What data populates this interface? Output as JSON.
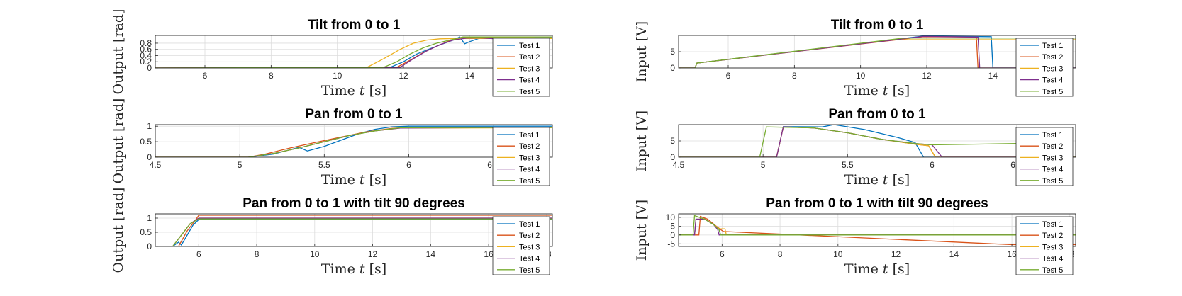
{
  "colors": [
    "#0072BD",
    "#D95319",
    "#EDB120",
    "#7E2F8E",
    "#77AC30"
  ],
  "chart_data": [
    {
      "type": "line",
      "title": "Tilt from 0 to 1",
      "xlabel": "Time t [s]",
      "ylabel": "Output [rad]",
      "xlim": [
        4.5,
        16.5
      ],
      "ylim": [
        0,
        1.05
      ],
      "xticks": [
        6,
        8,
        10,
        12,
        14
      ],
      "yticks": [
        0,
        0.2,
        0.4,
        0.6,
        0.8
      ],
      "ytick_labels": [
        "0",
        "0.2",
        "0.4",
        "0.6",
        "0.8"
      ],
      "grid": true,
      "legend": "bottom-right",
      "series": [
        {
          "name": "Test 1",
          "x": [
            4.5,
            11.6,
            12.0,
            12.4,
            12.8,
            13.2,
            13.5,
            13.7,
            13.85,
            14.0,
            14.3,
            16.5
          ],
          "y": [
            0,
            0.02,
            0.2,
            0.45,
            0.62,
            0.78,
            0.9,
            1.0,
            0.78,
            0.85,
            0.96,
            0.96
          ]
        },
        {
          "name": "Test 2",
          "x": [
            4.5,
            11.8,
            12.2,
            12.6,
            13.0,
            13.4,
            13.8,
            14.2,
            16.5
          ],
          "y": [
            0,
            0.02,
            0.25,
            0.5,
            0.7,
            0.88,
            0.98,
            0.98,
            0.98
          ]
        },
        {
          "name": "Test 3",
          "x": [
            4.5,
            10.9,
            11.4,
            11.9,
            12.3,
            12.7,
            13.1,
            13.5,
            16.5
          ],
          "y": [
            0,
            0.02,
            0.3,
            0.6,
            0.8,
            0.9,
            0.94,
            0.95,
            0.95
          ]
        },
        {
          "name": "Test 4",
          "x": [
            4.5,
            11.9,
            12.3,
            12.7,
            13.1,
            13.5,
            13.9,
            14.3,
            15.5,
            16.0,
            16.5
          ],
          "y": [
            0,
            0.02,
            0.3,
            0.55,
            0.75,
            0.9,
            0.96,
            0.97,
            0.9,
            0.98,
            0.98
          ]
        },
        {
          "name": "Test 5",
          "x": [
            4.5,
            11.4,
            11.8,
            12.2,
            12.6,
            13.0,
            13.4,
            13.8,
            16.5
          ],
          "y": [
            0,
            0.02,
            0.2,
            0.45,
            0.65,
            0.8,
            0.9,
            1.0,
            1.0
          ]
        }
      ]
    },
    {
      "type": "line",
      "title": "Tilt from 0 to 1",
      "xlabel": "Time t [s]",
      "ylabel": "Input [V]",
      "xlim": [
        4.5,
        16.5
      ],
      "ylim": [
        0,
        10
      ],
      "xticks": [
        6,
        8,
        10,
        12,
        14
      ],
      "yticks": [
        0,
        5
      ],
      "ytick_labels": [
        "0",
        "5"
      ],
      "grid": true,
      "legend": "bottom-right",
      "series": [
        {
          "name": "Test 1",
          "x": [
            4.5,
            5.0,
            5.05,
            11.9,
            13.95,
            14.0,
            14.05,
            16.5
          ],
          "y": [
            0,
            0,
            1.5,
            9.8,
            9.6,
            0,
            0,
            0
          ]
        },
        {
          "name": "Test 2",
          "x": [
            4.5,
            5.0,
            5.05,
            11.9,
            13.5,
            13.55,
            16.5
          ],
          "y": [
            0,
            0,
            1.5,
            9.6,
            9.5,
            0,
            0
          ]
        },
        {
          "name": "Test 3",
          "x": [
            4.5,
            5.0,
            5.05,
            11.0,
            16.5
          ],
          "y": [
            0,
            0,
            1.5,
            8.7,
            8.7
          ]
        },
        {
          "name": "Test 4",
          "x": [
            4.5,
            5.0,
            5.05,
            11.9,
            13.55,
            13.6,
            16.5
          ],
          "y": [
            0,
            0,
            1.5,
            9.7,
            9.5,
            0,
            0
          ]
        },
        {
          "name": "Test 5",
          "x": [
            4.5,
            5.0,
            5.05,
            11.3,
            16.5
          ],
          "y": [
            0,
            0,
            1.5,
            9.2,
            9.2
          ]
        }
      ]
    },
    {
      "type": "line",
      "title": "Pan from 0 to 1",
      "xlabel": "Time t [s]",
      "ylabel": "Output [rad]",
      "xlim": [
        4.5,
        6.85
      ],
      "ylim": [
        0,
        1.05
      ],
      "xticks": [
        4.5,
        5,
        5.5,
        6,
        6.5
      ],
      "yticks": [
        0,
        0.5,
        1
      ],
      "ytick_labels": [
        "0",
        "0.5",
        "1"
      ],
      "grid": true,
      "legend": "bottom-right",
      "series": [
        {
          "name": "Test 1",
          "x": [
            4.5,
            5.05,
            5.2,
            5.35,
            5.4,
            5.5,
            5.6,
            5.7,
            5.8,
            5.9,
            6.0,
            6.85
          ],
          "y": [
            0,
            0,
            0.1,
            0.32,
            0.2,
            0.35,
            0.55,
            0.75,
            0.9,
            0.98,
            1.0,
            1.0
          ]
        },
        {
          "name": "Test 2",
          "x": [
            4.5,
            5.05,
            5.15,
            5.3,
            5.45,
            5.6,
            5.75,
            5.9,
            6.0,
            6.5,
            6.55,
            6.85
          ],
          "y": [
            0,
            0,
            0.1,
            0.3,
            0.48,
            0.65,
            0.82,
            0.93,
            0.96,
            0.96,
            0.92,
            0.96
          ]
        },
        {
          "name": "Test 3",
          "x": [
            4.5,
            5.05,
            5.2,
            5.35,
            5.5,
            5.65,
            5.8,
            5.95,
            6.85
          ],
          "y": [
            0,
            0,
            0.12,
            0.3,
            0.5,
            0.7,
            0.85,
            0.94,
            0.95
          ]
        },
        {
          "name": "Test 4",
          "x": [
            4.5,
            5.05,
            5.2,
            5.35,
            5.5,
            5.65,
            5.8,
            5.95,
            6.85
          ],
          "y": [
            0,
            0,
            0.12,
            0.3,
            0.5,
            0.7,
            0.85,
            0.94,
            0.96
          ]
        },
        {
          "name": "Test 5",
          "x": [
            4.5,
            5.05,
            5.2,
            5.35,
            5.5,
            5.65,
            5.8,
            5.95,
            6.85
          ],
          "y": [
            0,
            0,
            0.12,
            0.3,
            0.5,
            0.7,
            0.85,
            0.95,
            0.96
          ]
        }
      ]
    },
    {
      "type": "line",
      "title": "Pan from 0 to 1",
      "xlabel": "Time t [s]",
      "ylabel": "Input [V]",
      "xlim": [
        4.5,
        6.85
      ],
      "ylim": [
        0,
        10
      ],
      "xticks": [
        4.5,
        5,
        5.5,
        6,
        6.5
      ],
      "yticks": [
        0,
        5
      ],
      "ytick_labels": [
        "0",
        "5"
      ],
      "grid": true,
      "legend": "bottom-right",
      "series": [
        {
          "name": "Test 1",
          "x": [
            4.5,
            5.08,
            5.12,
            5.35,
            5.42,
            5.6,
            5.8,
            5.9,
            5.95,
            6.85
          ],
          "y": [
            0,
            0,
            9.4,
            9.3,
            10.0,
            8.5,
            6.0,
            4.5,
            0,
            0
          ]
        },
        {
          "name": "Test 2",
          "x": [
            4.5,
            5.08,
            5.12,
            5.3,
            5.5,
            5.7,
            5.9,
            5.98,
            6.02,
            6.85
          ],
          "y": [
            0,
            0,
            9.3,
            9.0,
            7.5,
            5.5,
            4.0,
            3.5,
            0,
            0
          ]
        },
        {
          "name": "Test 3",
          "x": [
            4.5,
            5.08,
            5.12,
            5.3,
            5.5,
            5.7,
            5.9,
            5.98,
            6.02,
            6.85
          ],
          "y": [
            0,
            0,
            9.3,
            9.0,
            7.5,
            5.5,
            4.0,
            3.5,
            0,
            0
          ]
        },
        {
          "name": "Test 4",
          "x": [
            4.5,
            5.08,
            5.12,
            5.3,
            5.5,
            5.7,
            5.9,
            6.0,
            6.06,
            6.85
          ],
          "y": [
            0,
            0,
            9.3,
            9.0,
            7.5,
            5.5,
            4.2,
            3.8,
            0,
            0
          ]
        },
        {
          "name": "Test 5",
          "x": [
            4.5,
            4.98,
            5.02,
            5.3,
            5.5,
            5.7,
            5.9,
            6.0,
            6.5,
            6.55,
            6.6,
            6.85
          ],
          "y": [
            0,
            0,
            9.3,
            9.0,
            7.5,
            5.5,
            4.2,
            3.8,
            4.2,
            4.0,
            0,
            0
          ]
        }
      ]
    },
    {
      "type": "line",
      "title": "Pan from 0 to 1 with tilt 90 degrees",
      "xlabel": "Time t [s]",
      "ylabel": "Output [rad]",
      "xlim": [
        4.5,
        18.2
      ],
      "ylim": [
        0,
        1.15
      ],
      "xticks": [
        6,
        8,
        10,
        12,
        14,
        16,
        18
      ],
      "yticks": [
        0,
        0.5,
        1
      ],
      "ytick_labels": [
        "0",
        "0.5",
        "1"
      ],
      "grid": true,
      "legend": "bottom-right",
      "series": [
        {
          "name": "Test 1",
          "x": [
            4.5,
            5.1,
            5.3,
            5.4,
            5.6,
            5.8,
            6.0,
            18.2
          ],
          "y": [
            0,
            0,
            0.15,
            0.05,
            0.4,
            0.75,
            0.95,
            0.95
          ]
        },
        {
          "name": "Test 2",
          "x": [
            4.5,
            5.3,
            5.6,
            5.9,
            6.0,
            18.2
          ],
          "y": [
            0,
            0,
            0.55,
            0.95,
            1.1,
            1.1
          ]
        },
        {
          "name": "Test 3",
          "x": [
            4.5,
            5.1,
            5.4,
            5.7,
            6.0,
            18.2
          ],
          "y": [
            0,
            0,
            0.4,
            0.8,
            1.0,
            1.0
          ]
        },
        {
          "name": "Test 4",
          "x": [
            4.5,
            5.1,
            5.4,
            5.7,
            6.0,
            18.2
          ],
          "y": [
            0,
            0,
            0.4,
            0.8,
            1.0,
            1.0
          ]
        },
        {
          "name": "Test 5",
          "x": [
            4.5,
            5.1,
            5.4,
            5.7,
            6.0,
            18.2
          ],
          "y": [
            0,
            0,
            0.4,
            0.8,
            0.97,
            0.97
          ]
        }
      ]
    },
    {
      "type": "line",
      "title": "Pan from 0 to 1 with tilt 90 degrees",
      "xlabel": "Time t [s]",
      "ylabel": "Input [V]",
      "xlim": [
        4.5,
        18.2
      ],
      "ylim": [
        -6.5,
        12
      ],
      "xticks": [
        6,
        8,
        10,
        12,
        14,
        16,
        18
      ],
      "yticks": [
        -5,
        0,
        5,
        10
      ],
      "ytick_labels": [
        "-5",
        "0",
        "5",
        "10"
      ],
      "grid": true,
      "legend": "bottom-right",
      "series": [
        {
          "name": "Test 1",
          "x": [
            4.5,
            5.05,
            5.1,
            5.4,
            5.7,
            5.9,
            5.95,
            18.2
          ],
          "y": [
            0,
            0,
            9.0,
            9.0,
            6.0,
            3.0,
            0,
            0
          ]
        },
        {
          "name": "Test 2",
          "x": [
            4.5,
            5.2,
            5.25,
            5.5,
            5.8,
            6.0,
            6.05,
            16.0,
            18.2
          ],
          "y": [
            0,
            0,
            10.5,
            9.0,
            5.0,
            2.5,
            2.0,
            -5.5,
            -5.5
          ]
        },
        {
          "name": "Test 3",
          "x": [
            4.5,
            5.05,
            5.1,
            5.4,
            5.7,
            5.9,
            6.1,
            6.15,
            18.2
          ],
          "y": [
            0,
            0,
            9.0,
            9.0,
            6.0,
            3.5,
            3.5,
            0,
            0
          ]
        },
        {
          "name": "Test 4",
          "x": [
            4.5,
            5.05,
            5.1,
            5.4,
            5.7,
            5.85,
            5.9,
            18.2
          ],
          "y": [
            0,
            0,
            9.0,
            9.0,
            6.0,
            3.0,
            0,
            0
          ]
        },
        {
          "name": "Test 5",
          "x": [
            4.5,
            5.0,
            5.05,
            5.4,
            5.7,
            5.9,
            5.95,
            18.2
          ],
          "y": [
            0,
            0,
            11.0,
            9.0,
            6.0,
            3.0,
            0,
            0
          ]
        }
      ]
    }
  ]
}
